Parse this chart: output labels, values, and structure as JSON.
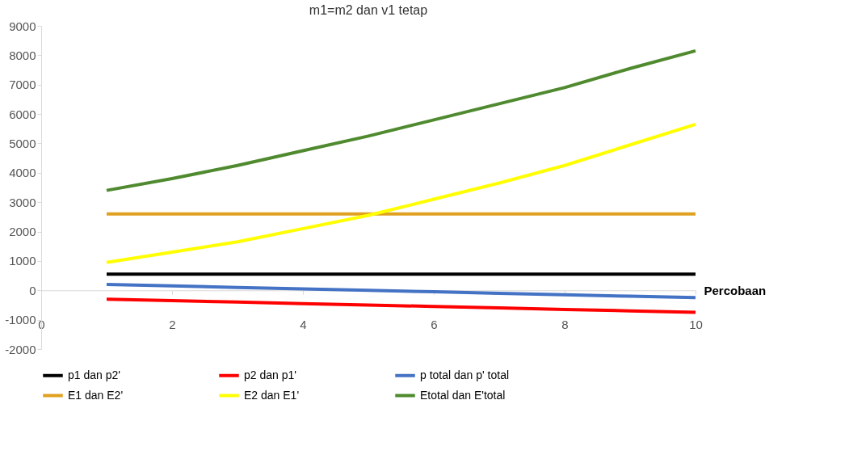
{
  "chart_data": {
    "type": "line",
    "title": "m1=m2 dan v1 tetap",
    "xlabel": "Percobaan",
    "x": [
      1,
      2,
      3,
      4,
      5,
      6,
      7,
      8,
      9,
      10
    ],
    "xlim": [
      0,
      10
    ],
    "xticks": [
      0,
      2,
      4,
      6,
      8,
      10
    ],
    "ylim": [
      -2000,
      9000
    ],
    "yticks": [
      -2000,
      -1000,
      0,
      1000,
      2000,
      3000,
      4000,
      5000,
      6000,
      7000,
      8000,
      9000
    ],
    "grid": false,
    "legend": "bottom",
    "marker": "none",
    "line_style": "solid",
    "series": [
      {
        "name": "p1 dan p2'",
        "color": "#000000",
        "values": [
          550,
          550,
          550,
          550,
          550,
          550,
          550,
          550,
          550,
          550
        ]
      },
      {
        "name": "p2 dan p1'",
        "color": "#ff0000",
        "values": [
          -300,
          -350,
          -400,
          -450,
          -500,
          -550,
          -600,
          -650,
          -700,
          -750
        ]
      },
      {
        "name": "p total dan p' total",
        "color": "#4472c4",
        "values": [
          200,
          150,
          100,
          50,
          0,
          -50,
          -100,
          -150,
          -200,
          -250
        ]
      },
      {
        "name": "E1 dan E2'",
        "color": "#e0a020",
        "values": [
          2600,
          2600,
          2600,
          2600,
          2600,
          2600,
          2600,
          2600,
          2600,
          2600
        ]
      },
      {
        "name": "E2 dan E1'",
        "color": "#ffff00",
        "values": [
          950,
          1300,
          1650,
          2100,
          2550,
          3100,
          3650,
          4250,
          4950,
          5650
        ]
      },
      {
        "name": "Etotal dan E'total",
        "color": "#4f8a2f",
        "values": [
          3400,
          3800,
          4250,
          4750,
          5250,
          5800,
          6350,
          6900,
          7550,
          8150
        ]
      }
    ]
  }
}
